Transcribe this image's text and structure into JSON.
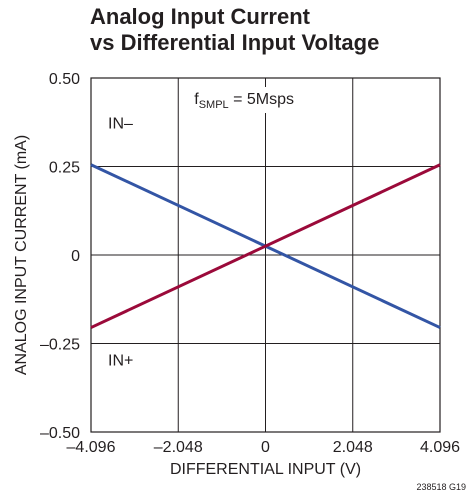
{
  "chart_data": {
    "type": "line",
    "title_line1": "Analog Input Current",
    "title_line2": "vs Differential Input Voltage",
    "xlabel": "DIFFERENTIAL INPUT (V)",
    "ylabel": "ANALOG INPUT CURRENT (mA)",
    "xlim": [
      -4.096,
      4.096
    ],
    "ylim": [
      -0.5,
      0.5
    ],
    "x_ticks": [
      -4.096,
      -2.048,
      0,
      2.048,
      4.096
    ],
    "x_tick_labels": [
      "–4.096",
      "–2.048",
      "0",
      "2.048",
      "4.096"
    ],
    "y_ticks": [
      0.5,
      0.25,
      0,
      -0.25,
      -0.5
    ],
    "y_tick_labels": [
      "0.50",
      "0.25",
      "0",
      "–0.25",
      "–0.50"
    ],
    "grid": true,
    "series": [
      {
        "name": "IN–",
        "color": "#3355a5",
        "x": [
          -4.096,
          4.096
        ],
        "y": [
          0.255,
          -0.205
        ]
      },
      {
        "name": "IN+",
        "color": "#9b0a3a",
        "x": [
          -4.096,
          4.096
        ],
        "y": [
          -0.205,
          0.255
        ]
      }
    ],
    "annotation": {
      "prefix": "f",
      "subscript": "SMPL",
      "suffix": " = 5Msps"
    },
    "figure_id": "238518 G19"
  }
}
